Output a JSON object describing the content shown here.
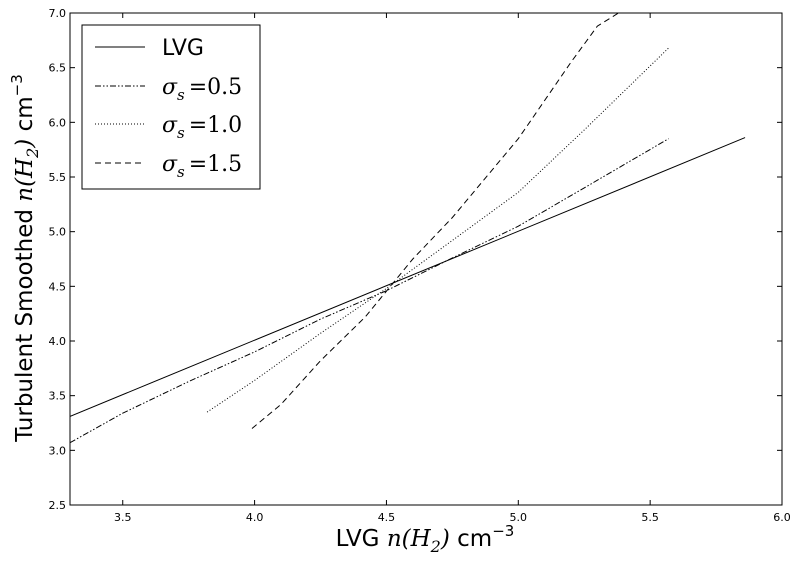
{
  "chart_data": {
    "type": "line",
    "xlabel": {
      "prefix": "LVG ",
      "math": "n(H",
      "sub": "2",
      "close": ")",
      "unit": " cm",
      "sup": "−3"
    },
    "ylabel": {
      "prefix": "Turbulent Smoothed ",
      "math": "n(H",
      "sub": "2",
      "close": ")",
      "unit": " cm",
      "sup": "−3"
    },
    "xlim": [
      3.3,
      6.0
    ],
    "ylim": [
      2.5,
      7.0
    ],
    "xticks": [
      3.5,
      4.0,
      4.5,
      5.0,
      5.5,
      6.0
    ],
    "yticks": [
      2.5,
      3.0,
      3.5,
      4.0,
      4.5,
      5.0,
      5.5,
      6.0,
      6.5,
      7.0
    ],
    "xtick_labels": [
      "3.5",
      "4.0",
      "4.5",
      "5.0",
      "5.5",
      "6.0"
    ],
    "ytick_labels": [
      "2.5",
      "3.0",
      "3.5",
      "4.0",
      "4.5",
      "5.0",
      "5.5",
      "6.0",
      "6.5",
      "7.0"
    ],
    "grid": false,
    "legend_position": "top-left",
    "series": [
      {
        "name": "LVG",
        "label_plain": "LVG",
        "style": "solid",
        "color": "#000000",
        "x": [
          3.3,
          5.86
        ],
        "y": [
          3.31,
          5.86
        ]
      },
      {
        "name": "σs = 0.5",
        "label_math": "σ",
        "label_sub": "s",
        "label_value": "=0.5",
        "style": "dashdot",
        "color": "#000000",
        "x": [
          3.3,
          3.5,
          3.75,
          4.0,
          4.25,
          4.5,
          4.75,
          5.0,
          5.25,
          5.57
        ],
        "y": [
          3.07,
          3.34,
          3.63,
          3.9,
          4.2,
          4.46,
          4.76,
          5.05,
          5.4,
          5.85
        ]
      },
      {
        "name": "σs = 1.0",
        "label_math": "σ",
        "label_sub": "s",
        "label_value": "=1.0",
        "style": "dotted",
        "color": "#000000",
        "x": [
          3.82,
          4.0,
          4.25,
          4.5,
          4.75,
          5.0,
          5.25,
          5.57
        ],
        "y": [
          3.35,
          3.64,
          4.07,
          4.48,
          4.92,
          5.36,
          5.93,
          6.68
        ]
      },
      {
        "name": "σs = 1.5",
        "label_math": "σ",
        "label_sub": "s",
        "label_value": "=1.5",
        "style": "dashed",
        "color": "#000000",
        "x": [
          3.99,
          4.1,
          4.25,
          4.42,
          4.6,
          4.75,
          5.0,
          5.2,
          5.3,
          5.38
        ],
        "y": [
          3.2,
          3.42,
          3.82,
          4.22,
          4.75,
          5.13,
          5.85,
          6.55,
          6.88,
          7.0
        ]
      }
    ]
  }
}
